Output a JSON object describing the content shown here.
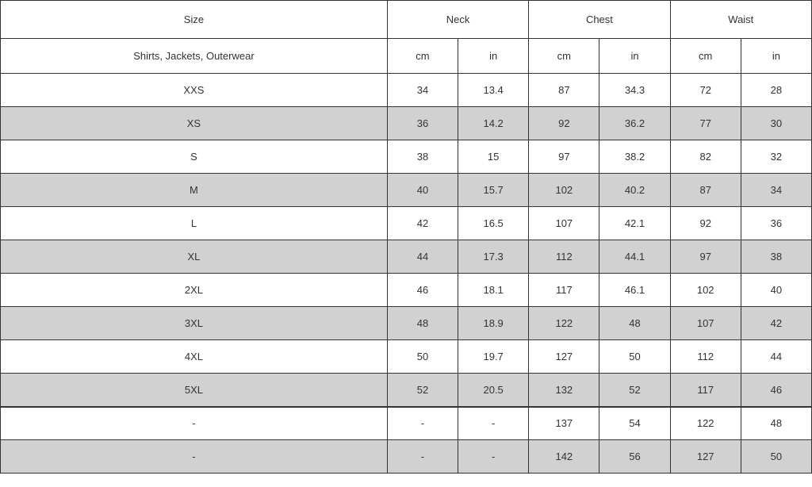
{
  "table": {
    "headers": {
      "size": "Size",
      "neck": "Neck",
      "chest": "Chest",
      "waist": "Waist"
    },
    "subheaders": {
      "category": "Shirts, Jackets, Outerwear",
      "cm": "cm",
      "in": "in"
    },
    "rows": [
      {
        "size": "XXS",
        "neck_cm": "34",
        "neck_in": "13.4",
        "chest_cm": "87",
        "chest_in": "34.3",
        "waist_cm": "72",
        "waist_in": "28",
        "shaded": false
      },
      {
        "size": "XS",
        "neck_cm": "36",
        "neck_in": "14.2",
        "chest_cm": "92",
        "chest_in": "36.2",
        "waist_cm": "77",
        "waist_in": "30",
        "shaded": true
      },
      {
        "size": "S",
        "neck_cm": "38",
        "neck_in": "15",
        "chest_cm": "97",
        "chest_in": "38.2",
        "waist_cm": "82",
        "waist_in": "32",
        "shaded": false
      },
      {
        "size": "M",
        "neck_cm": "40",
        "neck_in": "15.7",
        "chest_cm": "102",
        "chest_in": "40.2",
        "waist_cm": "87",
        "waist_in": "34",
        "shaded": true
      },
      {
        "size": "L",
        "neck_cm": "42",
        "neck_in": "16.5",
        "chest_cm": "107",
        "chest_in": "42.1",
        "waist_cm": "92",
        "waist_in": "36",
        "shaded": false
      },
      {
        "size": "XL",
        "neck_cm": "44",
        "neck_in": "17.3",
        "chest_cm": "112",
        "chest_in": "44.1",
        "waist_cm": "97",
        "waist_in": "38",
        "shaded": true
      },
      {
        "size": "2XL",
        "neck_cm": "46",
        "neck_in": "18.1",
        "chest_cm": "117",
        "chest_in": "46.1",
        "waist_cm": "102",
        "waist_in": "40",
        "shaded": false
      },
      {
        "size": "3XL",
        "neck_cm": "48",
        "neck_in": "18.9",
        "chest_cm": "122",
        "chest_in": "48",
        "waist_cm": "107",
        "waist_in": "42",
        "shaded": true
      },
      {
        "size": "4XL",
        "neck_cm": "50",
        "neck_in": "19.7",
        "chest_cm": "127",
        "chest_in": "50",
        "waist_cm": "112",
        "waist_in": "44",
        "shaded": false
      },
      {
        "size": "5XL",
        "neck_cm": "52",
        "neck_in": "20.5",
        "chest_cm": "132",
        "chest_in": "52",
        "waist_cm": "117",
        "waist_in": "46",
        "shaded": true
      },
      {
        "size": "-",
        "neck_cm": "-",
        "neck_in": "-",
        "chest_cm": "137",
        "chest_in": "54",
        "waist_cm": "122",
        "waist_in": "48",
        "shaded": false,
        "thick_top": true
      },
      {
        "size": "-",
        "neck_cm": "-",
        "neck_in": "-",
        "chest_cm": "142",
        "chest_in": "56",
        "waist_cm": "127",
        "waist_in": "50",
        "shaded": true
      }
    ],
    "colors": {
      "border": "#333333",
      "text": "#333333",
      "shaded_bg": "#d1d1d1",
      "bg": "#ffffff"
    },
    "font_size": 13
  }
}
